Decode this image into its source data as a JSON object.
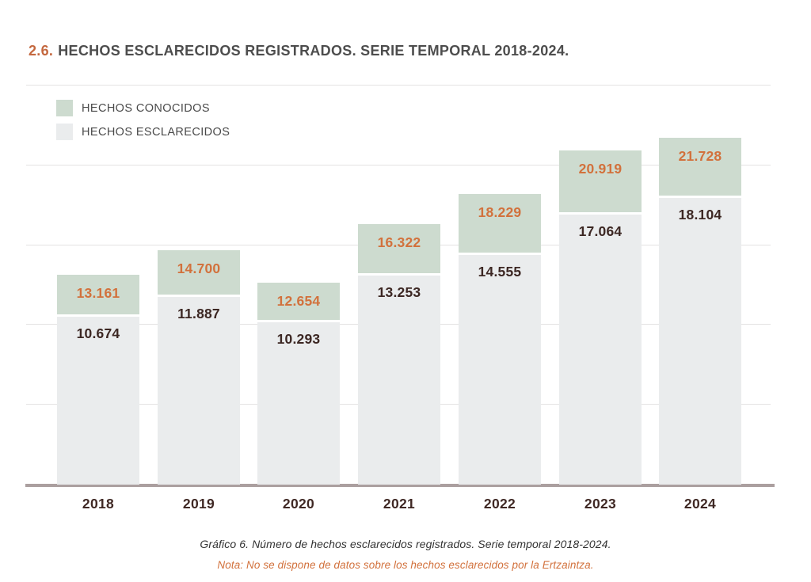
{
  "page": {
    "title_number": "2.6.",
    "title_text": "HECHOS ESCLARECIDOS REGISTRADOS. SERIE TEMPORAL 2018-2024.",
    "caption": "Gráfico 6. Número de hechos esclarecidos registrados. Serie temporal 2018-2024.",
    "note": "Nota: No se dispone de datos sobre los hechos esclarecidos por la Ertzaintza."
  },
  "colors": {
    "conocidos_fill": "#cddbcf",
    "esclarecidos_fill": "#eaeced",
    "conocidos_label": "#d2713c",
    "esclarecidos_label": "#3c2723",
    "title_accent": "#c4683f",
    "gridline": "#e4e2e2",
    "baseline": "#ab9f9f"
  },
  "chart_data": {
    "type": "bar",
    "subtype": "overlay-stacked-columns",
    "title": "2.6. HECHOS ESCLARECIDOS REGISTRADOS. SERIE TEMPORAL 2018-2024.",
    "categories": [
      "2018",
      "2019",
      "2020",
      "2021",
      "2022",
      "2023",
      "2024"
    ],
    "series": [
      {
        "name": "HECHOS CONOCIDOS",
        "color": "#cddbcf",
        "label_color": "#d2713c",
        "values": [
          13161,
          14700,
          12654,
          16322,
          18229,
          20919,
          21728
        ],
        "labels": [
          "13.161",
          "14.700",
          "12.654",
          "16.322",
          "18.229",
          "20.919",
          "21.728"
        ]
      },
      {
        "name": "HECHOS ESCLARECIDOS",
        "color": "#eaeced",
        "label_color": "#3c2723",
        "values": [
          10674,
          11887,
          10293,
          13253,
          14555,
          17064,
          18104
        ],
        "labels": [
          "10.674",
          "11.887",
          "10.293",
          "13.253",
          "14.555",
          "17.064",
          "18.104"
        ]
      }
    ],
    "xlabel": "",
    "ylabel": "",
    "ylim": [
      0,
      25000
    ],
    "gridline_step": 5000,
    "grid": true,
    "y_tick_labels_visible": false,
    "legend_position": "top-left"
  }
}
